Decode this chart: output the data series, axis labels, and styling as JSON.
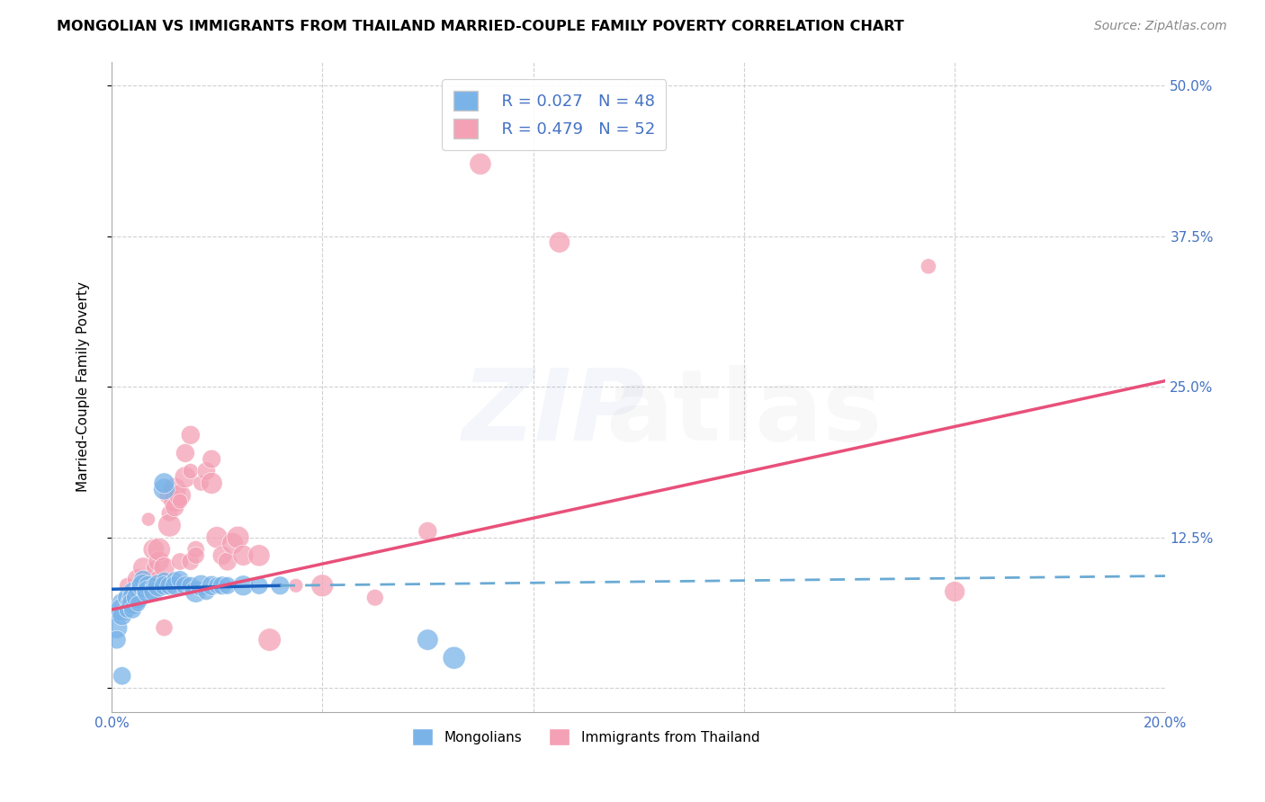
{
  "title": "MONGOLIAN VS IMMIGRANTS FROM THAILAND MARRIED-COUPLE FAMILY POVERTY CORRELATION CHART",
  "source": "Source: ZipAtlas.com",
  "ylabel": "Married-Couple Family Poverty",
  "xlim": [
    0.0,
    0.2
  ],
  "ylim": [
    -0.02,
    0.52
  ],
  "yticks": [
    0.0,
    0.125,
    0.25,
    0.375,
    0.5
  ],
  "yticklabels": [
    "",
    "12.5%",
    "25.0%",
    "37.5%",
    "50.0%"
  ],
  "mongolian_color": "#7ab3e8",
  "thailand_color": "#f4a0b5",
  "mongolian_R": 0.027,
  "mongolian_N": 48,
  "thailand_R": 0.479,
  "thailand_N": 52,
  "grid_color": "#cccccc",
  "background_color": "#ffffff",
  "axis_label_color": "#4472c4",
  "mongolian_scatter": [
    [
      0.001,
      0.06
    ],
    [
      0.001,
      0.05
    ],
    [
      0.001,
      0.04
    ],
    [
      0.002,
      0.07
    ],
    [
      0.002,
      0.065
    ],
    [
      0.002,
      0.06
    ],
    [
      0.003,
      0.075
    ],
    [
      0.003,
      0.07
    ],
    [
      0.003,
      0.065
    ],
    [
      0.004,
      0.08
    ],
    [
      0.004,
      0.075
    ],
    [
      0.004,
      0.07
    ],
    [
      0.004,
      0.065
    ],
    [
      0.005,
      0.085
    ],
    [
      0.005,
      0.08
    ],
    [
      0.005,
      0.075
    ],
    [
      0.005,
      0.07
    ],
    [
      0.006,
      0.09
    ],
    [
      0.006,
      0.085
    ],
    [
      0.006,
      0.08
    ],
    [
      0.007,
      0.085
    ],
    [
      0.007,
      0.08
    ],
    [
      0.008,
      0.085
    ],
    [
      0.008,
      0.08
    ],
    [
      0.009,
      0.085
    ],
    [
      0.01,
      0.09
    ],
    [
      0.01,
      0.085
    ],
    [
      0.01,
      0.165
    ],
    [
      0.01,
      0.17
    ],
    [
      0.011,
      0.085
    ],
    [
      0.012,
      0.09
    ],
    [
      0.012,
      0.085
    ],
    [
      0.013,
      0.09
    ],
    [
      0.014,
      0.085
    ],
    [
      0.015,
      0.085
    ],
    [
      0.016,
      0.08
    ],
    [
      0.017,
      0.085
    ],
    [
      0.018,
      0.08
    ],
    [
      0.019,
      0.085
    ],
    [
      0.02,
      0.085
    ],
    [
      0.021,
      0.085
    ],
    [
      0.022,
      0.085
    ],
    [
      0.025,
      0.085
    ],
    [
      0.028,
      0.085
    ],
    [
      0.032,
      0.085
    ],
    [
      0.06,
      0.04
    ],
    [
      0.002,
      0.01
    ],
    [
      0.065,
      0.025
    ]
  ],
  "thailand_scatter": [
    [
      0.003,
      0.085
    ],
    [
      0.005,
      0.09
    ],
    [
      0.005,
      0.08
    ],
    [
      0.005,
      0.075
    ],
    [
      0.006,
      0.1
    ],
    [
      0.006,
      0.085
    ],
    [
      0.007,
      0.09
    ],
    [
      0.007,
      0.14
    ],
    [
      0.008,
      0.1
    ],
    [
      0.008,
      0.115
    ],
    [
      0.009,
      0.09
    ],
    [
      0.009,
      0.105
    ],
    [
      0.009,
      0.115
    ],
    [
      0.01,
      0.1
    ],
    [
      0.01,
      0.085
    ],
    [
      0.01,
      0.05
    ],
    [
      0.011,
      0.16
    ],
    [
      0.011,
      0.145
    ],
    [
      0.011,
      0.135
    ],
    [
      0.012,
      0.165
    ],
    [
      0.012,
      0.155
    ],
    [
      0.012,
      0.15
    ],
    [
      0.013,
      0.16
    ],
    [
      0.013,
      0.155
    ],
    [
      0.013,
      0.105
    ],
    [
      0.014,
      0.195
    ],
    [
      0.014,
      0.175
    ],
    [
      0.015,
      0.21
    ],
    [
      0.015,
      0.18
    ],
    [
      0.015,
      0.105
    ],
    [
      0.016,
      0.115
    ],
    [
      0.016,
      0.11
    ],
    [
      0.017,
      0.17
    ],
    [
      0.018,
      0.18
    ],
    [
      0.019,
      0.19
    ],
    [
      0.019,
      0.17
    ],
    [
      0.02,
      0.125
    ],
    [
      0.021,
      0.11
    ],
    [
      0.022,
      0.105
    ],
    [
      0.023,
      0.12
    ],
    [
      0.024,
      0.125
    ],
    [
      0.025,
      0.11
    ],
    [
      0.028,
      0.11
    ],
    [
      0.03,
      0.04
    ],
    [
      0.035,
      0.085
    ],
    [
      0.04,
      0.085
    ],
    [
      0.05,
      0.075
    ],
    [
      0.06,
      0.13
    ],
    [
      0.07,
      0.435
    ],
    [
      0.085,
      0.37
    ],
    [
      0.155,
      0.35
    ],
    [
      0.16,
      0.08
    ]
  ],
  "mongolian_line_solid": [
    [
      0.0,
      0.082
    ],
    [
      0.032,
      0.085
    ]
  ],
  "mongolian_line_dashed": [
    [
      0.032,
      0.085
    ],
    [
      0.2,
      0.093
    ]
  ],
  "thailand_line": [
    [
      0.0,
      0.065
    ],
    [
      0.2,
      0.255
    ]
  ]
}
